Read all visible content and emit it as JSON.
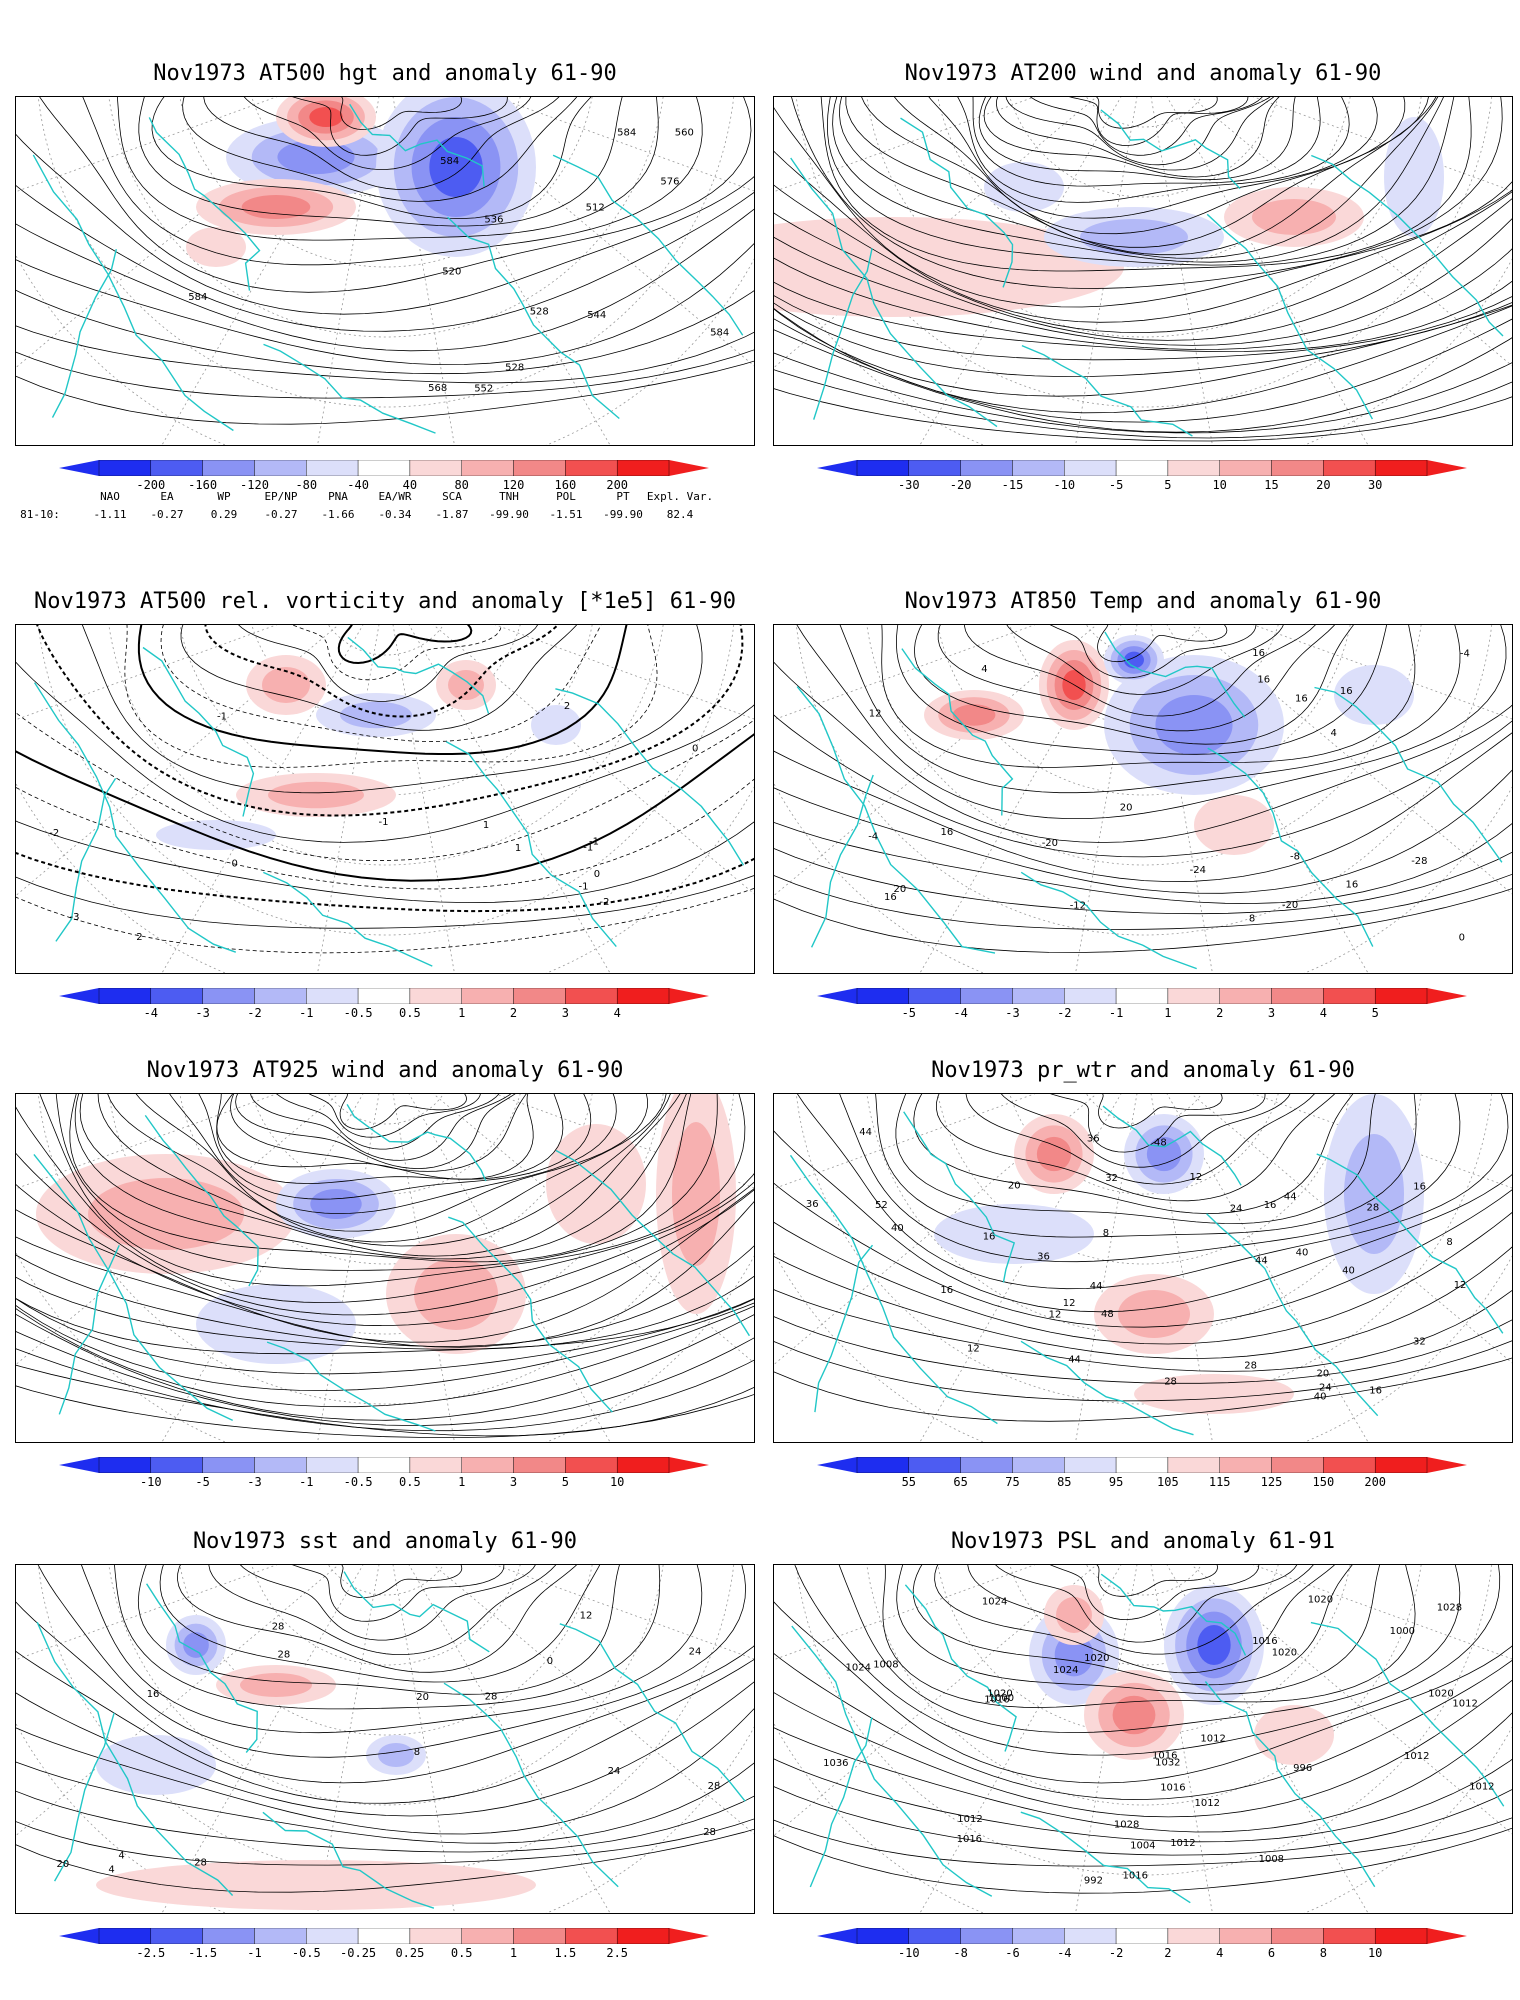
{
  "colors": {
    "blue_scale": [
      "#1e2df0",
      "#4d5cf2",
      "#8a93f4",
      "#b3b9f7",
      "#dcdffa"
    ],
    "red_scale": [
      "#fad8d8",
      "#f7b0b0",
      "#f28888",
      "#f25050",
      "#f01e1e"
    ],
    "coast": "#21c7c7",
    "contour": "#000000",
    "grid": "#999999"
  },
  "panels": [
    {
      "title": "Nov1973 AT500 hgt and anomaly 61-90",
      "field": "hgt",
      "colorbar": [
        "-200",
        "-160",
        "-120",
        "-80",
        "-40",
        "40",
        "80",
        "120",
        "160",
        "200"
      ],
      "contour_labels": [
        "584",
        "528",
        "512",
        "520",
        "528",
        "536",
        "544",
        "552",
        "560",
        "568",
        "576",
        "584",
        "584",
        "584"
      ]
    },
    {
      "title": "Nov1973 AT200 wind and anomaly 61-90",
      "field": "wind",
      "colorbar": [
        "-30",
        "-20",
        "-15",
        "-10",
        "-5",
        "5",
        "10",
        "15",
        "20",
        "30"
      ],
      "contour_labels": []
    },
    {
      "title": "Nov1973 AT500 rel. vorticity and anomaly [*1e5] 61-90",
      "field": "vort",
      "colorbar": [
        "-4",
        "-3",
        "-2",
        "-1",
        "-0.5",
        "0.5",
        "1",
        "2",
        "3",
        "4"
      ],
      "contour_labels": [
        "-2",
        "-1",
        "1",
        "2",
        "-2",
        "-3",
        "-1",
        "0",
        "0",
        "1",
        "-1",
        "2",
        "-1",
        "0",
        "-1"
      ]
    },
    {
      "title": "Nov1973 AT850 Temp and anomaly 61-90",
      "field": "temp",
      "colorbar": [
        "-5",
        "-4",
        "-3",
        "-2",
        "-1",
        "1",
        "2",
        "3",
        "4",
        "5"
      ],
      "contour_labels": [
        "-20",
        "-20",
        "-24",
        "-28",
        "-12",
        "-8",
        "-4",
        "-4",
        "0",
        "4",
        "4",
        "8",
        "12",
        "16",
        "16",
        "16",
        "20",
        "16",
        "16",
        "20",
        "16",
        "16"
      ]
    },
    {
      "title": "Nov1973 AT925 wind and anomaly 61-90",
      "field": "wind925",
      "colorbar": [
        "-10",
        "-5",
        "-3",
        "-1",
        "-0.5",
        "0.5",
        "1",
        "3",
        "5",
        "10"
      ],
      "contour_labels": []
    },
    {
      "title": "Nov1973 pr_wtr and anomaly 61-90",
      "field": "prwtr",
      "colorbar": [
        "55",
        "65",
        "75",
        "85",
        "95",
        "105",
        "115",
        "125",
        "150",
        "200"
      ],
      "contour_labels": [
        "40",
        "48",
        "36",
        "32",
        "28",
        "52",
        "44",
        "40",
        "36",
        "44",
        "12",
        "8",
        "16",
        "20",
        "24",
        "24",
        "16",
        "20",
        "12",
        "16",
        "12",
        "28",
        "32",
        "36",
        "40",
        "44",
        "48",
        "44",
        "8",
        "12",
        "16",
        "12",
        "16",
        "40",
        "44",
        "28"
      ]
    },
    {
      "title": "Nov1973 sst and anomaly 61-90",
      "field": "sst",
      "colorbar": [
        "-2.5",
        "-1.5",
        "-1",
        "-0.5",
        "-0.25",
        "0.25",
        "0.5",
        "1",
        "1.5",
        "2.5"
      ],
      "contour_labels": [
        "24",
        "28",
        "28",
        "28",
        "4",
        "12",
        "16",
        "20",
        "20",
        "24",
        "28",
        "28",
        "28",
        "0",
        "4",
        "8"
      ]
    },
    {
      "title": "Nov1973 PSL and anomaly 61-91",
      "field": "psl",
      "colorbar": [
        "-10",
        "-8",
        "-6",
        "-4",
        "-2",
        "2",
        "4",
        "6",
        "8",
        "10"
      ],
      "contour_labels": [
        "1012",
        "1016",
        "1016",
        "1012",
        "1008",
        "1004",
        "1000",
        "1024",
        "1036",
        "1032",
        "1028",
        "1016",
        "1000",
        "996",
        "992",
        "1028",
        "1024",
        "1020",
        "1020",
        "1020",
        "1008",
        "1016",
        "1020",
        "1024",
        "1012",
        "1016",
        "1020",
        "1012",
        "1016",
        "1012",
        "1012",
        "1012"
      ]
    }
  ],
  "teleconnections": {
    "headers": [
      "NAO",
      "EA",
      "WP",
      "EP/NP",
      "PNA",
      "EA/WR",
      "SCA",
      "TNH",
      "POL",
      "PT",
      "Expl. Var."
    ],
    "row_label": "81-10:",
    "values": [
      "-1.11",
      "-0.27",
      "0.29",
      "-0.27",
      "-1.66",
      "-0.34",
      "-1.87",
      "-99.90",
      "-1.51",
      "-99.90",
      "82.4"
    ]
  }
}
